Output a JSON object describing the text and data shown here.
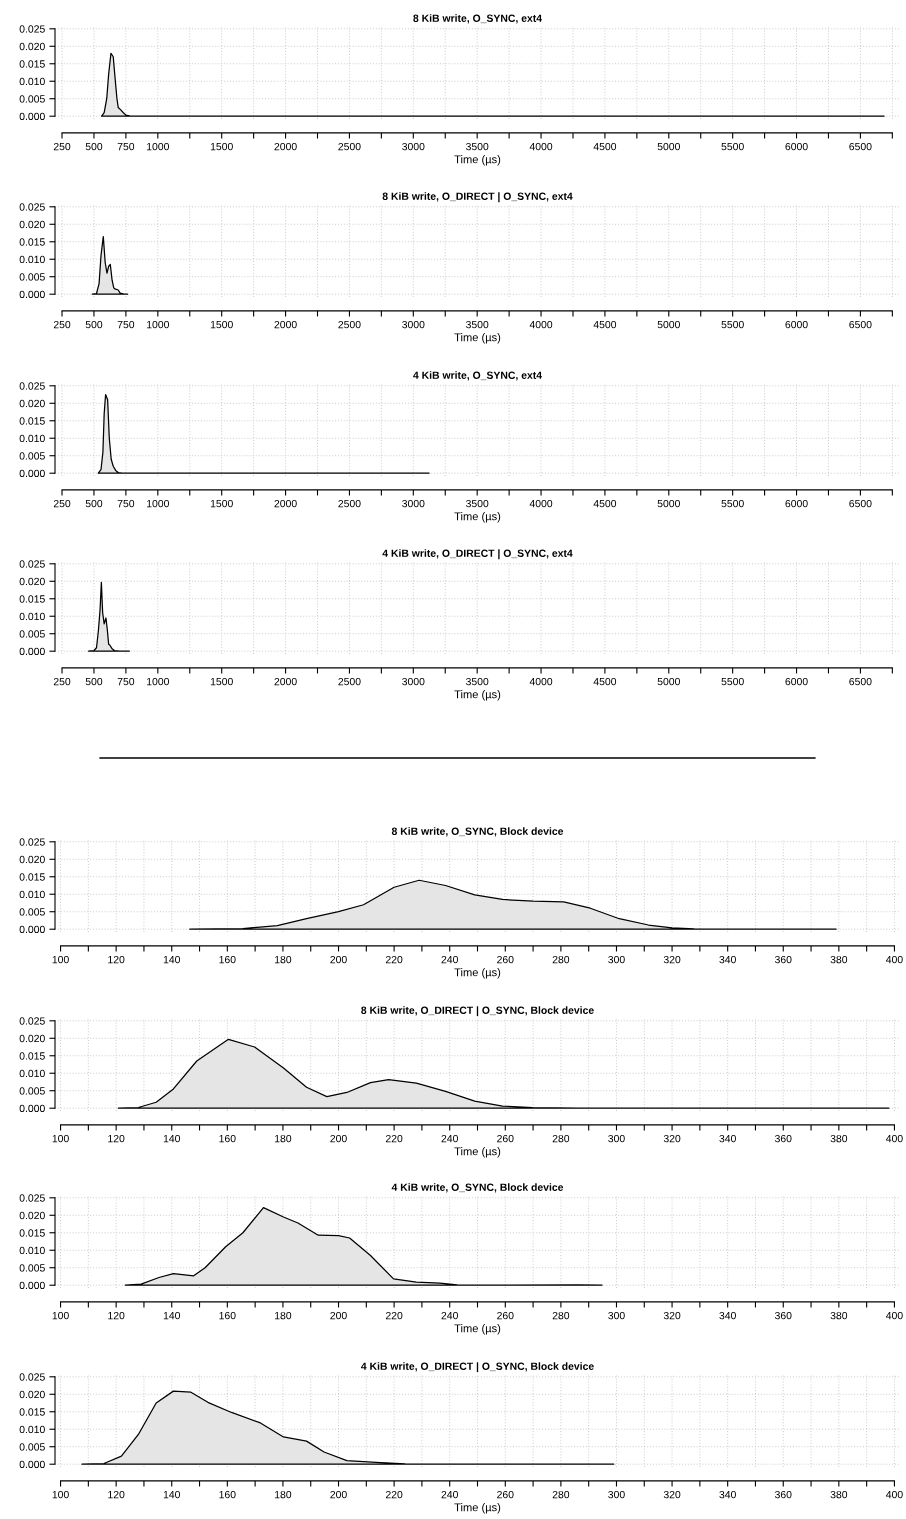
{
  "chart_data": [
    {
      "type": "area",
      "title": "8 KiB write, O_SYNC, ext4",
      "xlabel": "Time (µs)",
      "x": [
        560,
        580,
        600,
        615,
        633,
        651,
        665,
        680,
        690,
        710,
        730,
        750,
        780,
        820,
        1500,
        3000,
        6685
      ],
      "series": [
        {
          "color": "#e5e5e5",
          "values": [
            0,
            0.001,
            0.005,
            0.012,
            0.018,
            0.017,
            0.011,
            0.005,
            0.0025,
            0.0018,
            0.001,
            0.0003,
            0.0001,
            0,
            0,
            0,
            0
          ]
        }
      ],
      "xlim": [
        195,
        6810
      ],
      "xticks": [
        250,
        500,
        750,
        1000,
        {
          "value": 1250,
          "label": null
        },
        1500,
        {
          "value": 1750,
          "label": null
        },
        2000,
        {
          "value": 2250,
          "label": null
        },
        2500,
        {
          "value": 2750,
          "label": null
        },
        3000,
        {
          "value": 3250,
          "label": null
        },
        3500,
        {
          "value": 3750,
          "label": null
        },
        4000,
        {
          "value": 4250,
          "label": null
        },
        4500,
        {
          "value": 4750,
          "label": null
        },
        5000,
        {
          "value": 5250,
          "label": null
        },
        5500,
        {
          "value": 5750,
          "label": null
        },
        6000,
        {
          "value": 6250,
          "label": null
        },
        6500,
        {
          "value": 6750,
          "label": null
        }
      ],
      "ylim": [
        -0.0008,
        0.0258
      ],
      "yticks": [
        {
          "value": 0,
          "label": "0.000"
        },
        0.005,
        {
          "value": 0.01,
          "label": "0.010"
        },
        0.015,
        {
          "value": 0.02,
          "label": "0.020"
        },
        0.025
      ],
      "grid": true
    },
    {
      "type": "area",
      "title": "8 KiB write, O_DIRECT | O_SYNC, ext4",
      "xlabel": "Time (µs)",
      "x": [
        487,
        520,
        540,
        555,
        573,
        588,
        602,
        615,
        628,
        642,
        655,
        664,
        690,
        705,
        730,
        763
      ],
      "series": [
        {
          "color": "#e5e5e5",
          "values": [
            0,
            0.0002,
            0.003,
            0.011,
            0.0165,
            0.009,
            0.006,
            0.008,
            0.0085,
            0.004,
            0.0018,
            0.0015,
            0.0012,
            0.0003,
            0.0001,
            0
          ]
        }
      ],
      "xlim": [
        195,
        6810
      ],
      "xticks": [
        250,
        500,
        750,
        1000,
        {
          "value": 1250,
          "label": null
        },
        1500,
        {
          "value": 1750,
          "label": null
        },
        2000,
        {
          "value": 2250,
          "label": null
        },
        2500,
        {
          "value": 2750,
          "label": null
        },
        3000,
        {
          "value": 3250,
          "label": null
        },
        3500,
        {
          "value": 3750,
          "label": null
        },
        4000,
        {
          "value": 4250,
          "label": null
        },
        4500,
        {
          "value": 4750,
          "label": null
        },
        5000,
        {
          "value": 5250,
          "label": null
        },
        5500,
        {
          "value": 5750,
          "label": null
        },
        6000,
        {
          "value": 6250,
          "label": null
        },
        6500,
        {
          "value": 6750,
          "label": null
        }
      ],
      "ylim": [
        -0.0008,
        0.0258
      ],
      "yticks": [
        {
          "value": 0,
          "label": "0.000"
        },
        0.005,
        {
          "value": 0.01,
          "label": "0.010"
        },
        0.015,
        {
          "value": 0.02,
          "label": "0.020"
        },
        0.025
      ],
      "grid": true
    },
    {
      "type": "area",
      "title": "4 KiB write, O_SYNC, ext4",
      "xlabel": "Time (µs)",
      "x": [
        534,
        555,
        570,
        580,
        591,
        607,
        620,
        635,
        651,
        670,
        690,
        720,
        1500,
        3123
      ],
      "series": [
        {
          "color": "#e5e5e5",
          "values": [
            0,
            0.001,
            0.006,
            0.017,
            0.0225,
            0.021,
            0.01,
            0.004,
            0.002,
            0.0008,
            0.0002,
            0,
            0,
            0
          ]
        }
      ],
      "xlim": [
        195,
        6810
      ],
      "xticks": [
        250,
        500,
        750,
        1000,
        {
          "value": 1250,
          "label": null
        },
        1500,
        {
          "value": 1750,
          "label": null
        },
        2000,
        {
          "value": 2250,
          "label": null
        },
        2500,
        {
          "value": 2750,
          "label": null
        },
        3000,
        {
          "value": 3250,
          "label": null
        },
        3500,
        {
          "value": 3750,
          "label": null
        },
        4000,
        {
          "value": 4250,
          "label": null
        },
        4500,
        {
          "value": 4750,
          "label": null
        },
        5000,
        {
          "value": 5250,
          "label": null
        },
        5500,
        {
          "value": 5750,
          "label": null
        },
        6000,
        {
          "value": 6250,
          "label": null
        },
        6500,
        {
          "value": 6750,
          "label": null
        }
      ],
      "ylim": [
        -0.0008,
        0.0258
      ],
      "yticks": [
        {
          "value": 0,
          "label": "0.000"
        },
        0.005,
        {
          "value": 0.01,
          "label": "0.010"
        },
        0.015,
        {
          "value": 0.02,
          "label": "0.020"
        },
        0.025
      ],
      "grid": true
    },
    {
      "type": "area",
      "title": "4 KiB write, O_DIRECT | O_SYNC, ext4",
      "xlabel": "Time (µs)",
      "x": [
        458,
        500,
        520,
        535,
        548,
        558,
        568,
        580,
        594,
        605,
        615,
        625,
        640,
        660,
        700,
        777
      ],
      "series": [
        {
          "color": "#e5e5e5",
          "values": [
            0,
            0.0002,
            0.001,
            0.006,
            0.012,
            0.0197,
            0.011,
            0.0078,
            0.0095,
            0.006,
            0.002,
            0.0017,
            0.0008,
            0.0002,
            0,
            0
          ]
        }
      ],
      "xlim": [
        195,
        6810
      ],
      "xticks": [
        250,
        500,
        750,
        1000,
        {
          "value": 1250,
          "label": null
        },
        1500,
        {
          "value": 1750,
          "label": null
        },
        2000,
        {
          "value": 2250,
          "label": null
        },
        2500,
        {
          "value": 2750,
          "label": null
        },
        3000,
        {
          "value": 3250,
          "label": null
        },
        3500,
        {
          "value": 3750,
          "label": null
        },
        4000,
        {
          "value": 4250,
          "label": null
        },
        4500,
        {
          "value": 4750,
          "label": null
        },
        5000,
        {
          "value": 5250,
          "label": null
        },
        5500,
        {
          "value": 5750,
          "label": null
        },
        6000,
        {
          "value": 6250,
          "label": null
        },
        6500,
        {
          "value": 6750,
          "label": null
        }
      ],
      "ylim": [
        -0.0008,
        0.0258
      ],
      "yticks": [
        {
          "value": 0,
          "label": "0.000"
        },
        0.005,
        {
          "value": 0.01,
          "label": "0.010"
        },
        0.015,
        {
          "value": 0.02,
          "label": "0.020"
        },
        0.025
      ],
      "grid": true
    },
    {
      "type": "area",
      "title": "8 KiB write, O_SYNC, Block device",
      "xlabel": "Time (µs)",
      "x": [
        146.5,
        165.6,
        178,
        188.5,
        200,
        209,
        220,
        229,
        238.5,
        249,
        259,
        270,
        281,
        290.6,
        301,
        311.5,
        320,
        328,
        338.5,
        379
      ],
      "series": [
        {
          "color": "#e5e5e5",
          "values": [
            0,
            0.0002,
            0.001,
            0.003,
            0.005,
            0.007,
            0.012,
            0.014,
            0.0125,
            0.0098,
            0.0085,
            0.008,
            0.0078,
            0.006,
            0.003,
            0.0012,
            0.0004,
            0.0001,
            0,
            0
          ]
        }
      ],
      "xlim": [
        98,
        402
      ],
      "xticks": [
        100,
        {
          "value": 110,
          "label": null
        },
        120,
        {
          "value": 130,
          "label": null
        },
        140,
        {
          "value": 150,
          "label": null
        },
        160,
        {
          "value": 170,
          "label": null
        },
        180,
        {
          "value": 190,
          "label": null
        },
        200,
        {
          "value": 210,
          "label": null
        },
        220,
        {
          "value": 230,
          "label": null
        },
        240,
        {
          "value": 250,
          "label": null
        },
        260,
        {
          "value": 270,
          "label": null
        },
        280,
        {
          "value": 290,
          "label": null
        },
        300,
        {
          "value": 310,
          "label": null
        },
        320,
        {
          "value": 330,
          "label": null
        },
        340,
        {
          "value": 350,
          "label": null
        },
        360,
        {
          "value": 370,
          "label": null
        },
        380,
        {
          "value": 390,
          "label": null
        },
        400
      ],
      "ylim": [
        -0.0008,
        0.0258
      ],
      "yticks": [
        {
          "value": 0,
          "label": "0.000"
        },
        0.005,
        {
          "value": 0.01,
          "label": "0.010"
        },
        0.015,
        {
          "value": 0.02,
          "label": "0.020"
        },
        0.025
      ],
      "grid": true
    },
    {
      "type": "area",
      "title": "8 KiB write, O_DIRECT | O_SYNC, Block device",
      "xlabel": "Time (µs)",
      "x": [
        120.8,
        128,
        134.4,
        140.6,
        149,
        160.4,
        169.8,
        180.2,
        188.5,
        195.8,
        203,
        211.5,
        218,
        228,
        238.5,
        249,
        259,
        269.8,
        286,
        398
      ],
      "series": [
        {
          "color": "#e5e5e5",
          "values": [
            0,
            0.0002,
            0.0017,
            0.0055,
            0.0135,
            0.0197,
            0.0175,
            0.0115,
            0.006,
            0.0033,
            0.0045,
            0.0073,
            0.0082,
            0.0072,
            0.0048,
            0.002,
            0.0006,
            0.0002,
            0,
            0
          ]
        }
      ],
      "xlim": [
        98,
        402
      ],
      "xticks": [
        100,
        {
          "value": 110,
          "label": null
        },
        120,
        {
          "value": 130,
          "label": null
        },
        140,
        {
          "value": 150,
          "label": null
        },
        160,
        {
          "value": 170,
          "label": null
        },
        180,
        {
          "value": 190,
          "label": null
        },
        200,
        {
          "value": 210,
          "label": null
        },
        220,
        {
          "value": 230,
          "label": null
        },
        240,
        {
          "value": 250,
          "label": null
        },
        260,
        {
          "value": 270,
          "label": null
        },
        280,
        {
          "value": 290,
          "label": null
        },
        300,
        {
          "value": 310,
          "label": null
        },
        320,
        {
          "value": 330,
          "label": null
        },
        340,
        {
          "value": 350,
          "label": null
        },
        360,
        {
          "value": 370,
          "label": null
        },
        380,
        {
          "value": 390,
          "label": null
        },
        400
      ],
      "ylim": [
        -0.0008,
        0.0258
      ],
      "yticks": [
        {
          "value": 0,
          "label": "0.000"
        },
        0.005,
        {
          "value": 0.01,
          "label": "0.010"
        },
        0.015,
        {
          "value": 0.02,
          "label": "0.020"
        },
        0.025
      ],
      "grid": true
    },
    {
      "type": "area",
      "title": "4 KiB write, O_SYNC, Block device",
      "xlabel": "Time (µs)",
      "x": [
        123.3,
        129,
        135.4,
        140.6,
        147.9,
        152,
        159.4,
        165.6,
        173,
        180.2,
        185.4,
        192.7,
        200,
        204,
        211.5,
        219.8,
        228,
        236.5,
        242.7,
        255,
        286,
        294.8
      ],
      "series": [
        {
          "color": "#e5e5e5",
          "values": [
            0,
            0.0003,
            0.0022,
            0.0033,
            0.0027,
            0.005,
            0.011,
            0.015,
            0.0222,
            0.0195,
            0.0178,
            0.0143,
            0.0142,
            0.0135,
            0.0085,
            0.0018,
            0.0009,
            0.0006,
            0.0001,
            0,
            0.0001,
            0
          ]
        }
      ],
      "xlim": [
        98,
        402
      ],
      "xticks": [
        100,
        {
          "value": 110,
          "label": null
        },
        120,
        {
          "value": 130,
          "label": null
        },
        140,
        {
          "value": 150,
          "label": null
        },
        160,
        {
          "value": 170,
          "label": null
        },
        180,
        {
          "value": 190,
          "label": null
        },
        200,
        {
          "value": 210,
          "label": null
        },
        220,
        {
          "value": 230,
          "label": null
        },
        240,
        {
          "value": 250,
          "label": null
        },
        260,
        {
          "value": 270,
          "label": null
        },
        280,
        {
          "value": 290,
          "label": null
        },
        300,
        {
          "value": 310,
          "label": null
        },
        320,
        {
          "value": 330,
          "label": null
        },
        340,
        {
          "value": 350,
          "label": null
        },
        360,
        {
          "value": 370,
          "label": null
        },
        380,
        {
          "value": 390,
          "label": null
        },
        400
      ],
      "ylim": [
        -0.0008,
        0.0258
      ],
      "yticks": [
        {
          "value": 0,
          "label": "0.000"
        },
        0.005,
        {
          "value": 0.01,
          "label": "0.010"
        },
        0.015,
        {
          "value": 0.02,
          "label": "0.020"
        },
        0.025
      ],
      "grid": true
    },
    {
      "type": "area",
      "title": "4 KiB write, O_DIRECT | O_SYNC, Block device",
      "xlabel": "Time (µs)",
      "x": [
        107.7,
        115.6,
        121.9,
        128,
        134.4,
        140.6,
        146.9,
        153,
        161.5,
        171.9,
        180.2,
        188.5,
        194.8,
        203,
        213.5,
        224,
        244.8,
        299
      ],
      "series": [
        {
          "color": "#e5e5e5",
          "values": [
            0,
            0.0002,
            0.0023,
            0.0085,
            0.0175,
            0.0209,
            0.0206,
            0.0177,
            0.0148,
            0.0118,
            0.0078,
            0.0066,
            0.0035,
            0.001,
            0.0005,
            0.0001,
            0,
            0
          ]
        }
      ],
      "xlim": [
        98,
        402
      ],
      "xticks": [
        100,
        {
          "value": 110,
          "label": null
        },
        120,
        {
          "value": 130,
          "label": null
        },
        140,
        {
          "value": 150,
          "label": null
        },
        160,
        {
          "value": 170,
          "label": null
        },
        180,
        {
          "value": 190,
          "label": null
        },
        200,
        {
          "value": 210,
          "label": null
        },
        220,
        {
          "value": 230,
          "label": null
        },
        240,
        {
          "value": 250,
          "label": null
        },
        260,
        {
          "value": 270,
          "label": null
        },
        280,
        {
          "value": 290,
          "label": null
        },
        300,
        {
          "value": 310,
          "label": null
        },
        320,
        {
          "value": 330,
          "label": null
        },
        340,
        {
          "value": 350,
          "label": null
        },
        360,
        {
          "value": 370,
          "label": null
        },
        380,
        {
          "value": 390,
          "label": null
        },
        400
      ],
      "ylim": [
        -0.0008,
        0.0258
      ],
      "yticks": [
        {
          "value": 0,
          "label": "0.000"
        },
        0.005,
        {
          "value": 0.01,
          "label": "0.010"
        },
        0.015,
        {
          "value": 0.02,
          "label": "0.020"
        },
        0.025
      ],
      "grid": true
    }
  ]
}
